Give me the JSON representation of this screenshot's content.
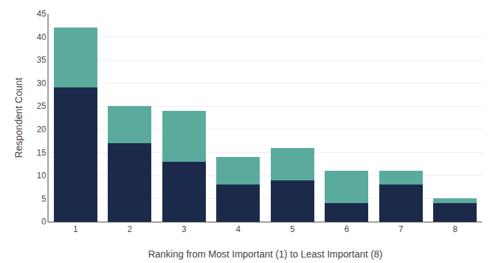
{
  "chart_data": {
    "type": "bar",
    "stacked": true,
    "xlabel": "Ranking from Most Important (1) to Least Important (8)",
    "ylabel": "Respondent Count",
    "categories": [
      1,
      2,
      3,
      4,
      5,
      6,
      7,
      8
    ],
    "series": [
      {
        "color": "#1b2a4a",
        "values": [
          29,
          17,
          13,
          8,
          9,
          4,
          8,
          4
        ]
      },
      {
        "color": "#5aab9e",
        "values": [
          13,
          8,
          11,
          6,
          7,
          7,
          3,
          1
        ]
      }
    ],
    "ylim": [
      0,
      45
    ],
    "yticks": [
      0,
      5,
      10,
      15,
      20,
      25,
      30,
      35,
      40,
      45
    ],
    "grid": true
  }
}
